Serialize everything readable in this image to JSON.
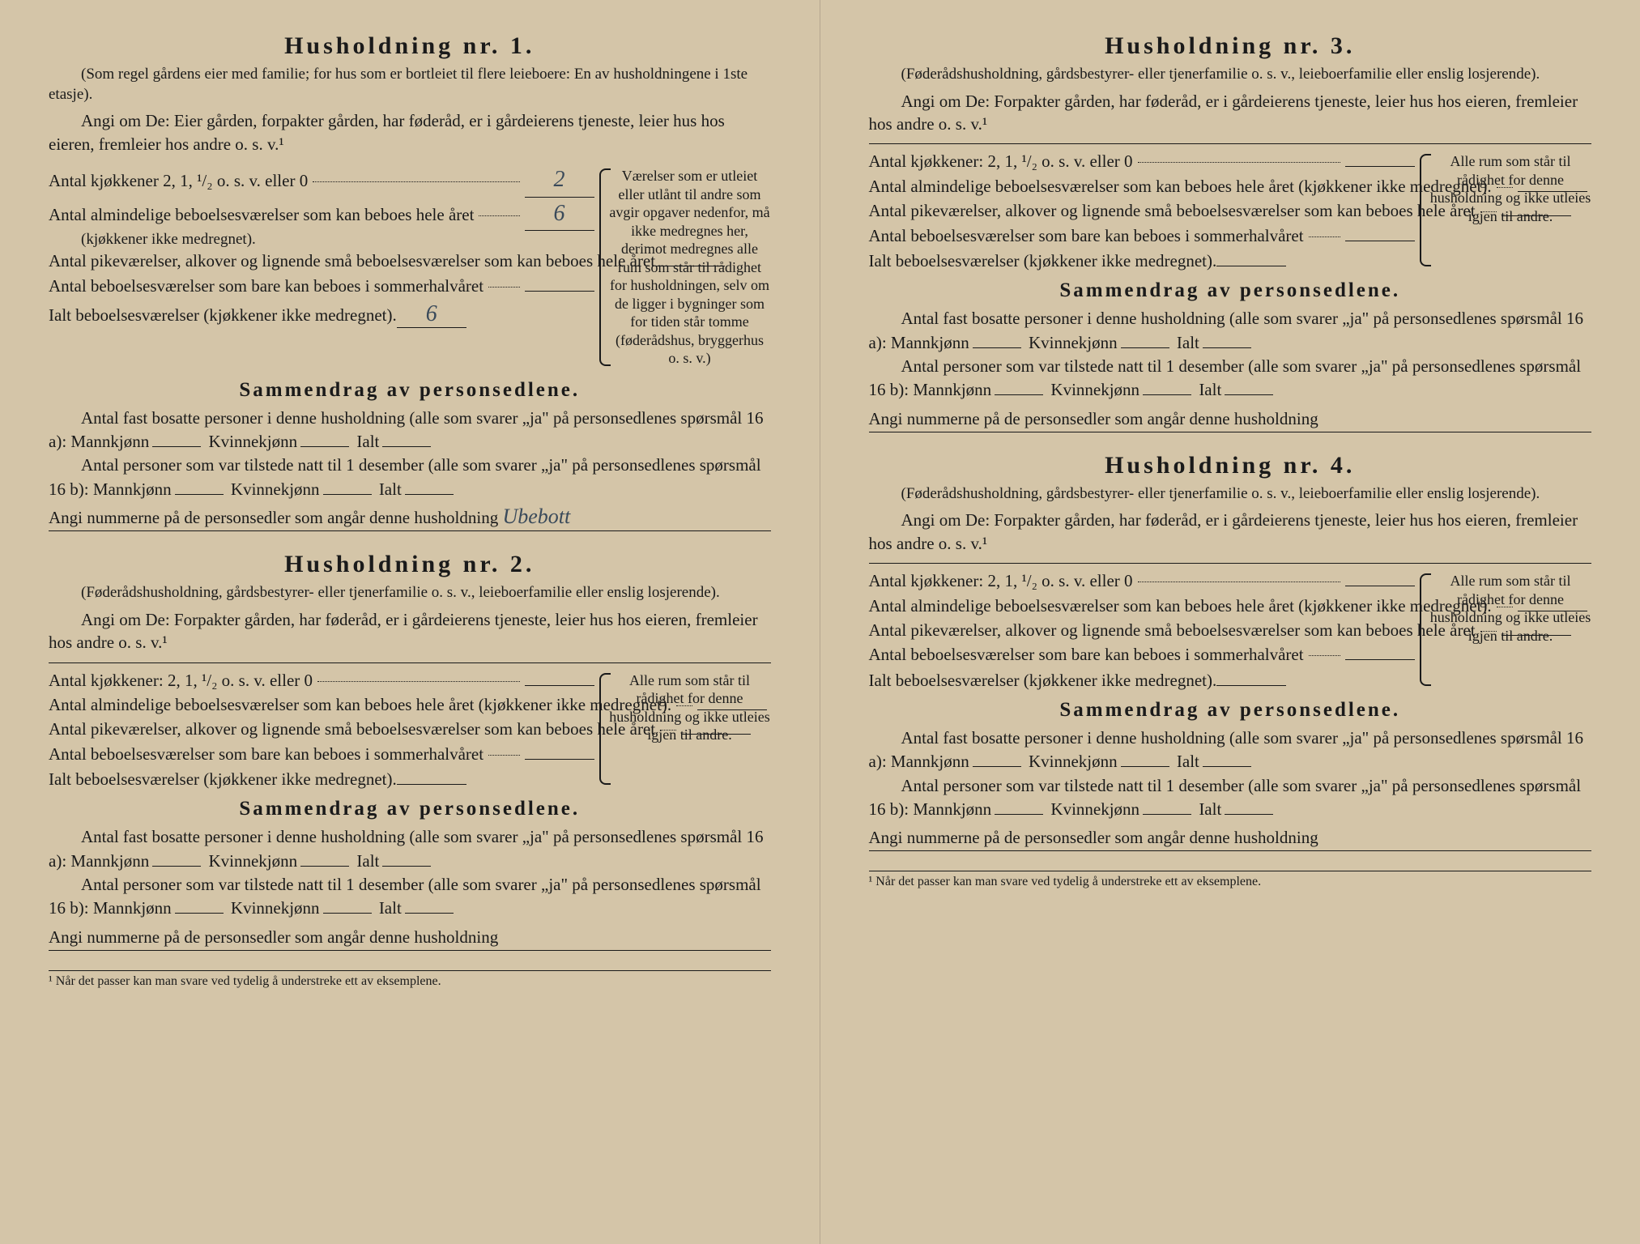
{
  "households": [
    {
      "title": "Husholdning nr. 1.",
      "subtitle": "(Som regel gårdens eier med familie; for hus som er bortleiet til flere leieboere: En av husholdningene i 1ste etasje).",
      "angi": "Angi om De: Eier gården, forpakter gården, har føderåd, er i gårdeierens tjeneste, leier hus hos eieren, fremleier hos andre o. s. v.¹",
      "kitchens_label": "Antal kjøkkener 2, 1, ¹/₂ o. s. v. eller 0",
      "kitchens_val": "2",
      "rooms_label": "Antal almindelige beboelsesværelser som kan beboes hele året",
      "rooms_sub": "(kjøkkener ikke medregnet).",
      "rooms_val": "6",
      "pike_label": "Antal pikeværelser, alkover og lignende små beboelsesværelser som kan beboes hele året",
      "pike_val": "",
      "summer_label": "Antal beboelsesværelser som bare kan beboes i sommerhalvåret",
      "summer_val": "",
      "total_label": "Ialt beboelsesværelser (kjøkkener ikke medregnet).",
      "total_val": "6",
      "side_note": "Værelser som er utleiet eller utlånt til andre som avgir opgaver nedenfor, må ikke medregnes her, derimot medregnes alle rum som står til rådighet for husholdningen, selv om de ligger i bygninger som for tiden står tomme (føderådshus, bryggerhus o. s. v.)",
      "summary_title": "Sammendrag av personsedlene.",
      "s16a": "Antal fast bosatte personer i denne husholdning (alle som svarer „ja\" på personsedlenes spørsmål 16 a): Mannkjønn",
      "s16b": "Antal personer som var tilstede natt til 1 desember (alle som svarer „ja\" på personsedlenes spørsmål 16 b): Mannkjønn",
      "kvinn": "Kvinnekjønn",
      "ialt": "Ialt",
      "angi_nums_label": "Angi nummerne på de personsedler som angår denne husholdning",
      "angi_nums_val": "Ubebott"
    },
    {
      "title": "Husholdning nr. 2.",
      "subtitle": "(Føderådshusholdning, gårdsbestyrer- eller tjenerfamilie o. s. v., leieboerfamilie eller enslig losjerende).",
      "angi": "Angi om De: Forpakter gården, har føderåd, er i gårdeierens tjeneste, leier hus hos eieren, fremleier hos andre o. s. v.¹",
      "kitchens_label": "Antal kjøkkener: 2, 1, ¹/₂ o. s. v. eller 0",
      "kitchens_val": "",
      "rooms_label": "Antal almindelige beboelsesværelser som kan beboes hele året (kjøkkener ikke medregnet).",
      "rooms_val": "",
      "pike_label": "Antal pikeværelser, alkover og lignende små beboelsesværelser som kan beboes hele året",
      "pike_val": "",
      "summer_label": "Antal beboelsesværelser som bare kan beboes i sommerhalvåret",
      "summer_val": "",
      "total_label": "Ialt beboelsesværelser (kjøkkener ikke medregnet).",
      "total_val": "",
      "side_note": "Alle rum som står til rådighet for denne husholdning og ikke utleies igjen til andre.",
      "summary_title": "Sammendrag av personsedlene.",
      "s16a": "Antal fast bosatte personer i denne husholdning (alle som svarer „ja\" på personsedlenes spørsmål 16 a): Mannkjønn",
      "s16b": "Antal personer som var tilstede natt til 1 desember (alle som svarer „ja\" på personsedlenes spørsmål 16 b): Mannkjønn",
      "kvinn": "Kvinnekjønn",
      "ialt": "Ialt",
      "angi_nums_label": "Angi nummerne på de personsedler som angår denne husholdning",
      "angi_nums_val": ""
    },
    {
      "title": "Husholdning nr. 3.",
      "subtitle": "(Føderådshusholdning, gårdsbestyrer- eller tjenerfamilie o. s. v., leieboerfamilie eller enslig losjerende).",
      "angi": "Angi om De: Forpakter gården, har føderåd, er i gårdeierens tjeneste, leier hus hos eieren, fremleier hos andre o. s. v.¹",
      "kitchens_label": "Antal kjøkkener: 2, 1, ¹/₂ o. s. v. eller 0",
      "kitchens_val": "",
      "rooms_label": "Antal almindelige beboelsesværelser som kan beboes hele året (kjøkkener ikke medregnet).",
      "rooms_val": "",
      "pike_label": "Antal pikeværelser, alkover og lignende små beboelsesværelser som kan beboes hele året",
      "pike_val": "",
      "summer_label": "Antal beboelsesværelser som bare kan beboes i sommerhalvåret",
      "summer_val": "",
      "total_label": "Ialt beboelsesværelser (kjøkkener ikke medregnet).",
      "total_val": "",
      "side_note": "Alle rum som står til rådighet for denne husholdning og ikke utleies igjen til andre.",
      "summary_title": "Sammendrag av personsedlene.",
      "s16a": "Antal fast bosatte personer i denne husholdning (alle som svarer „ja\" på personsedlenes spørsmål 16 a): Mannkjønn",
      "s16b": "Antal personer som var tilstede natt til 1 desember (alle som svarer „ja\" på personsedlenes spørsmål 16 b): Mannkjønn",
      "kvinn": "Kvinnekjønn",
      "ialt": "Ialt",
      "angi_nums_label": "Angi nummerne på de personsedler som angår denne husholdning",
      "angi_nums_val": ""
    },
    {
      "title": "Husholdning nr. 4.",
      "subtitle": "(Føderådshusholdning, gårdsbestyrer- eller tjenerfamilie o. s. v., leieboerfamilie eller enslig losjerende).",
      "angi": "Angi om De: Forpakter gården, har føderåd, er i gårdeierens tjeneste, leier hus hos eieren, fremleier hos andre o. s. v.¹",
      "kitchens_label": "Antal kjøkkener: 2, 1, ¹/₂ o. s. v. eller 0",
      "kitchens_val": "",
      "rooms_label": "Antal almindelige beboelsesværelser som kan beboes hele året (kjøkkener ikke medregnet).",
      "rooms_val": "",
      "pike_label": "Antal pikeværelser, alkover og lignende små beboelsesværelser som kan beboes hele året",
      "pike_val": "",
      "summer_label": "Antal beboelsesværelser som bare kan beboes i sommerhalvåret",
      "summer_val": "",
      "total_label": "Ialt beboelsesværelser (kjøkkener ikke medregnet).",
      "total_val": "",
      "side_note": "Alle rum som står til rådighet for denne husholdning og ikke utleies igjen til andre.",
      "summary_title": "Sammendrag av personsedlene.",
      "s16a": "Antal fast bosatte personer i denne husholdning (alle som svarer „ja\" på personsedlenes spørsmål 16 a): Mannkjønn",
      "s16b": "Antal personer som var tilstede natt til 1 desember (alle som svarer „ja\" på personsedlenes spørsmål 16 b): Mannkjønn",
      "kvinn": "Kvinnekjønn",
      "ialt": "Ialt",
      "angi_nums_label": "Angi nummerne på de personsedler som angår denne husholdning",
      "angi_nums_val": ""
    }
  ],
  "footnote": "¹ Når det passer kan man svare ved tydelig å understreke ett av eksemplene."
}
